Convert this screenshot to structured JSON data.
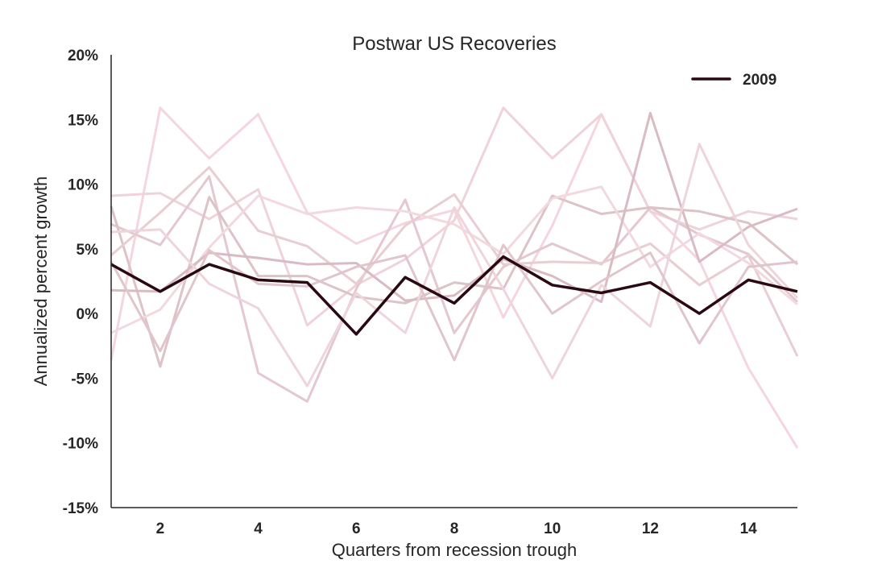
{
  "chart_data": {
    "type": "line",
    "title": "Postwar US Recoveries",
    "xlabel": "Quarters from recession trough",
    "ylabel": "Annualized percent growth",
    "xlim": [
      1,
      15
    ],
    "ylim": [
      -15,
      20
    ],
    "x": [
      1,
      2,
      3,
      4,
      5,
      6,
      7,
      8,
      9,
      10,
      11,
      12,
      13,
      14,
      15
    ],
    "x_ticks": [
      2,
      4,
      6,
      8,
      10,
      12,
      14
    ],
    "x_tick_labels": [
      "2",
      "4",
      "6",
      "8",
      "10",
      "12",
      "14"
    ],
    "y_ticks": [
      -15,
      -10,
      -5,
      0,
      5,
      10,
      15,
      20
    ],
    "y_tick_labels": [
      "-15%",
      "-10%",
      "-5%",
      "0%",
      "5%",
      "10%",
      "15%",
      "20%"
    ],
    "grid": false,
    "legend_position": "top-right",
    "highlight_color": "#2a0a12",
    "background_series_colors": [
      "#f5d6de",
      "#efd3da",
      "#e3c8cf",
      "#dcc3c8",
      "#e8cdd3",
      "#f2d8df",
      "#d9bcc3",
      "#eed5dc",
      "#e0c6cc"
    ],
    "highlight_series": {
      "name": "2009",
      "values": [
        3.8,
        1.7,
        3.8,
        2.6,
        2.4,
        -1.6,
        2.8,
        0.8,
        4.4,
        2.2,
        1.6,
        2.4,
        0.0,
        2.6,
        1.7
      ]
    },
    "background_series": [
      {
        "values": [
          -3.6,
          15.9,
          12.0,
          15.4,
          7.8,
          5.4,
          7.0,
          8.0,
          -0.3,
          6.8,
          15.4,
          7.9,
          4.1,
          -4.2,
          -10.4
        ]
      },
      {
        "values": [
          9.1,
          9.3,
          7.3,
          9.6,
          -0.9,
          2.2,
          4.2,
          7.2,
          15.9,
          12.0,
          15.4,
          7.9,
          6.5,
          7.9,
          7.3
        ]
      },
      {
        "values": [
          6.9,
          5.3,
          10.6,
          -4.6,
          -6.8,
          1.9,
          8.8,
          -1.5,
          3.6,
          5.4,
          3.8,
          8.2,
          6.1,
          4.6,
          0.9
        ]
      },
      {
        "values": [
          8.3,
          -4.1,
          9.0,
          2.9,
          2.9,
          1.3,
          0.8,
          2.4,
          1.9,
          9.1,
          7.7,
          8.2,
          7.9,
          7.0,
          3.8
        ]
      },
      {
        "values": [
          4.5,
          7.8,
          11.3,
          6.4,
          5.2,
          2.3,
          6.8,
          9.2,
          3.8,
          4.0,
          3.9,
          5.4,
          2.2,
          4.5,
          -3.3
        ]
      },
      {
        "values": [
          -1.5,
          0.3,
          5.1,
          9.1,
          7.7,
          8.2,
          7.9,
          6.9,
          4.6,
          8.9,
          9.8,
          3.6,
          6.2,
          3.9,
          0.7
        ]
      },
      {
        "values": [
          1.8,
          1.7,
          4.7,
          4.3,
          3.8,
          3.9,
          1.0,
          1.4,
          4.2,
          2.9,
          0.9,
          15.5,
          4.0,
          6.7,
          8.1
        ]
      },
      {
        "values": [
          6.3,
          6.5,
          2.3,
          0.4,
          -5.6,
          1.6,
          -1.5,
          8.2,
          1.9,
          -5.0,
          2.2,
          -1.0,
          13.1,
          5.3,
          1.2
        ]
      },
      {
        "values": [
          4.0,
          -2.9,
          4.9,
          2.3,
          2.1,
          3.6,
          4.5,
          -3.6,
          5.3,
          0.0,
          2.5,
          4.7,
          -2.3,
          3.6,
          4.0
        ]
      }
    ]
  }
}
